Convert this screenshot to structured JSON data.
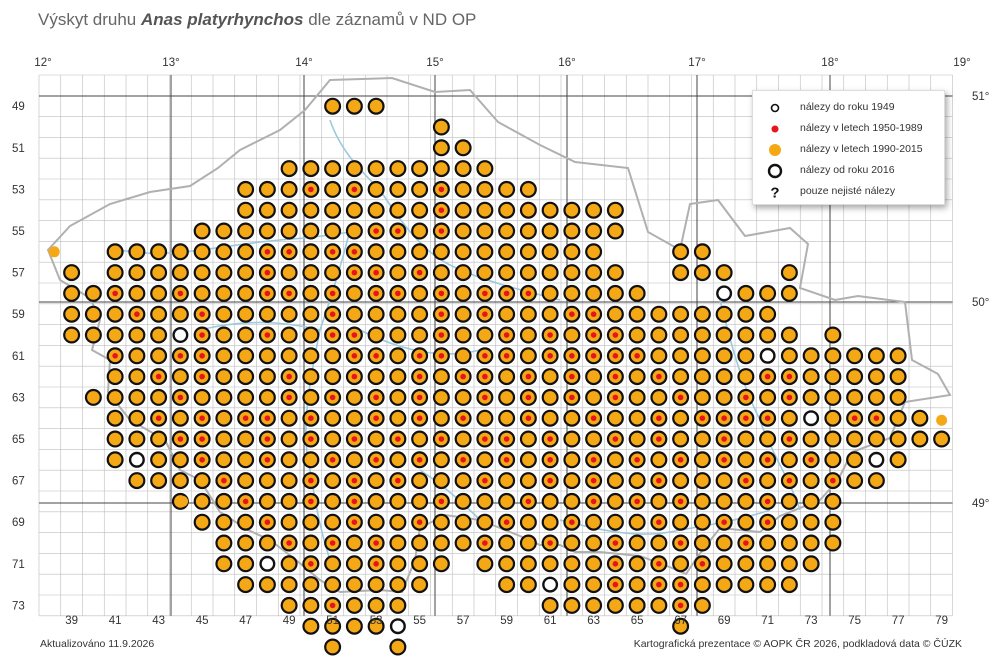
{
  "title": {
    "prefix": "Výskyt druhu ",
    "species": "Anas platyrhynchos",
    "suffix": " dle záznamů v ND OP"
  },
  "axes": {
    "longitude_labels": [
      "12°",
      "13°",
      "14°",
      "15°",
      "16°",
      "17°",
      "18°",
      "19°"
    ],
    "latitude_labels": [
      "51°",
      "50°",
      "49°"
    ],
    "column_labels": [
      "39",
      "41",
      "43",
      "45",
      "47",
      "49",
      "51",
      "53",
      "55",
      "57",
      "59",
      "61",
      "63",
      "65",
      "67",
      "69",
      "71",
      "73",
      "75",
      "77",
      "79"
    ],
    "row_labels": [
      "49",
      "51",
      "53",
      "55",
      "57",
      "59",
      "61",
      "63",
      "65",
      "67",
      "69",
      "71",
      "73"
    ]
  },
  "legend": {
    "items": [
      {
        "label": "nálezy do roku 1949",
        "symbol": "small-open-circle-icon"
      },
      {
        "label": "nálezy v letech 1950-1989",
        "symbol": "red-dot-icon"
      },
      {
        "label": "nálezy v letech 1990-2015",
        "symbol": "orange-dot-icon"
      },
      {
        "label": "nálezy od roku 2016",
        "symbol": "bold-open-circle-icon"
      },
      {
        "label": "pouze nejisté nálezy",
        "symbol": "question-mark-icon"
      }
    ]
  },
  "colors": {
    "recent_fill": "#f5a815",
    "historic_red": "#e8141c",
    "ring": "#111111",
    "grid": "#bdbdbd",
    "border": "#aaaaaa",
    "rivers": "#9cc9e0"
  },
  "map_data": {
    "grid_origin": {
      "column": 38,
      "row": 48
    },
    "occupied_squares": [
      [
        51,
        52,
        53
      ],
      [
        56
      ],
      [
        56,
        57
      ],
      [
        49,
        50,
        51,
        52,
        53,
        54,
        55,
        56,
        57,
        58
      ],
      [
        47,
        48,
        49,
        50,
        51,
        52,
        53,
        54,
        55,
        56,
        57,
        58,
        59,
        60
      ],
      [
        47,
        48,
        49,
        50,
        51,
        52,
        53,
        54,
        55,
        56,
        57,
        58,
        59,
        60,
        61,
        62,
        63,
        64
      ],
      [
        45,
        46,
        47,
        48,
        49,
        50,
        51,
        52,
        53,
        54,
        55,
        56,
        57,
        58,
        59,
        60,
        61,
        62,
        63,
        64
      ],
      [
        41,
        42,
        43,
        44,
        45,
        46,
        47,
        48,
        49,
        50,
        51,
        52,
        53,
        54,
        55,
        56,
        57,
        58,
        59,
        60,
        61,
        62,
        63,
        67,
        68
      ],
      [
        39,
        41,
        42,
        43,
        44,
        45,
        46,
        47,
        48,
        49,
        50,
        51,
        52,
        53,
        54,
        55,
        56,
        57,
        58,
        59,
        60,
        61,
        62,
        63,
        64,
        67,
        68,
        69,
        72
      ],
      [
        39,
        40,
        41,
        42,
        43,
        44,
        45,
        46,
        47,
        48,
        49,
        50,
        51,
        52,
        53,
        54,
        55,
        56,
        57,
        58,
        59,
        60,
        61,
        62,
        63,
        64,
        65,
        69,
        70,
        71,
        72
      ],
      [
        39,
        40,
        41,
        42,
        43,
        44,
        45,
        46,
        47,
        48,
        49,
        50,
        51,
        52,
        53,
        54,
        55,
        56,
        57,
        58,
        59,
        60,
        61,
        62,
        63,
        64,
        65,
        66,
        67,
        68,
        69,
        70,
        71
      ],
      [
        39,
        40,
        41,
        42,
        43,
        44,
        45,
        46,
        47,
        48,
        49,
        50,
        51,
        52,
        53,
        54,
        55,
        56,
        57,
        58,
        59,
        60,
        61,
        62,
        63,
        64,
        65,
        66,
        67,
        68,
        69,
        70,
        71,
        72,
        74
      ],
      [
        41,
        42,
        43,
        44,
        45,
        46,
        47,
        48,
        49,
        50,
        51,
        52,
        53,
        54,
        55,
        56,
        57,
        58,
        59,
        60,
        61,
        62,
        63,
        64,
        65,
        66,
        67,
        68,
        69,
        70,
        71,
        72,
        73,
        74,
        75,
        76,
        77
      ],
      [
        41,
        42,
        43,
        44,
        45,
        46,
        47,
        48,
        49,
        50,
        51,
        52,
        53,
        54,
        55,
        56,
        57,
        58,
        59,
        60,
        61,
        62,
        63,
        64,
        65,
        66,
        67,
        68,
        69,
        70,
        71,
        72,
        73,
        74,
        75,
        76,
        77
      ],
      [
        40,
        41,
        42,
        43,
        44,
        45,
        46,
        47,
        48,
        49,
        50,
        51,
        52,
        53,
        54,
        55,
        56,
        57,
        58,
        59,
        60,
        61,
        62,
        63,
        64,
        65,
        66,
        67,
        68,
        69,
        70,
        71,
        72,
        73,
        74,
        75,
        76,
        77
      ],
      [
        41,
        42,
        43,
        44,
        45,
        46,
        47,
        48,
        49,
        50,
        51,
        52,
        53,
        54,
        55,
        56,
        57,
        58,
        59,
        60,
        61,
        62,
        63,
        64,
        65,
        66,
        67,
        68,
        69,
        70,
        71,
        72,
        73,
        74,
        75,
        76,
        77,
        78
      ],
      [
        41,
        42,
        43,
        44,
        45,
        46,
        47,
        48,
        49,
        50,
        51,
        52,
        53,
        54,
        55,
        56,
        57,
        58,
        59,
        60,
        61,
        62,
        63,
        64,
        65,
        66,
        67,
        68,
        69,
        70,
        71,
        72,
        73,
        74,
        75,
        76,
        77,
        78,
        79
      ],
      [
        41,
        42,
        43,
        44,
        45,
        46,
        47,
        48,
        49,
        50,
        51,
        52,
        53,
        54,
        55,
        56,
        57,
        58,
        59,
        60,
        61,
        62,
        63,
        64,
        65,
        66,
        67,
        68,
        69,
        70,
        71,
        72,
        73,
        74,
        75,
        76,
        77
      ],
      [
        42,
        43,
        44,
        45,
        46,
        47,
        48,
        49,
        50,
        51,
        52,
        53,
        54,
        55,
        56,
        57,
        58,
        59,
        60,
        61,
        62,
        63,
        64,
        65,
        66,
        67,
        68,
        69,
        70,
        71,
        72,
        73,
        74,
        75,
        76
      ],
      [
        44,
        45,
        46,
        47,
        48,
        49,
        50,
        51,
        52,
        53,
        54,
        55,
        56,
        57,
        58,
        59,
        60,
        61,
        62,
        63,
        64,
        65,
        66,
        67,
        68,
        69,
        70,
        71,
        72,
        73,
        74
      ],
      [
        45,
        46,
        47,
        48,
        49,
        50,
        51,
        52,
        53,
        54,
        55,
        56,
        57,
        58,
        59,
        60,
        61,
        62,
        63,
        64,
        65,
        66,
        67,
        68,
        69,
        70,
        71,
        72,
        73,
        74
      ],
      [
        46,
        47,
        48,
        49,
        50,
        51,
        52,
        53,
        54,
        55,
        56,
        57,
        58,
        59,
        60,
        61,
        62,
        63,
        64,
        65,
        66,
        67,
        68,
        69,
        70,
        71,
        72,
        73,
        74
      ],
      [
        46,
        47,
        48,
        49,
        50,
        51,
        52,
        53,
        54,
        55,
        56,
        58,
        59,
        60,
        61,
        62,
        63,
        64,
        65,
        66,
        67,
        68,
        69,
        70,
        71,
        72,
        73
      ],
      [
        47,
        48,
        49,
        50,
        51,
        52,
        53,
        54,
        55,
        59,
        60,
        61,
        62,
        63,
        64,
        65,
        66,
        67,
        68,
        69,
        70,
        71,
        72
      ],
      [
        49,
        50,
        51,
        52,
        53,
        54,
        61,
        62,
        63,
        64,
        65,
        66,
        67,
        68
      ],
      [
        50,
        51,
        52,
        53,
        54,
        67
      ],
      [
        51,
        54
      ]
    ],
    "red_squares": [
      [
        53,
        50
      ],
      [
        53,
        52
      ],
      [
        53,
        56
      ],
      [
        54,
        56
      ],
      [
        55,
        53
      ],
      [
        55,
        54
      ],
      [
        55,
        56
      ],
      [
        56,
        48
      ],
      [
        56,
        49
      ],
      [
        56,
        51
      ],
      [
        56,
        52
      ],
      [
        57,
        48
      ],
      [
        57,
        52
      ],
      [
        57,
        53
      ],
      [
        57,
        55
      ],
      [
        58,
        41
      ],
      [
        58,
        44
      ],
      [
        58,
        48
      ],
      [
        58,
        49
      ],
      [
        58,
        51
      ],
      [
        58,
        53
      ],
      [
        58,
        54
      ],
      [
        58,
        56
      ],
      [
        58,
        58
      ],
      [
        58,
        59
      ],
      [
        58,
        60
      ],
      [
        59,
        42
      ],
      [
        59,
        45
      ],
      [
        59,
        51
      ],
      [
        59,
        56
      ],
      [
        59,
        58
      ],
      [
        59,
        62
      ],
      [
        59,
        63
      ],
      [
        60,
        45
      ],
      [
        60,
        48
      ],
      [
        60,
        51
      ],
      [
        60,
        52
      ],
      [
        60,
        56
      ],
      [
        60,
        59
      ],
      [
        60,
        61
      ],
      [
        60,
        63
      ],
      [
        60,
        64
      ],
      [
        61,
        41
      ],
      [
        61,
        44
      ],
      [
        61,
        45
      ],
      [
        61,
        52
      ],
      [
        61,
        53
      ],
      [
        61,
        55
      ],
      [
        61,
        56
      ],
      [
        61,
        58
      ],
      [
        61,
        59
      ],
      [
        61,
        61
      ],
      [
        61,
        62
      ],
      [
        61,
        63
      ],
      [
        61,
        64
      ],
      [
        61,
        65
      ],
      [
        62,
        43
      ],
      [
        62,
        45
      ],
      [
        62,
        49
      ],
      [
        62,
        52
      ],
      [
        62,
        55
      ],
      [
        62,
        57
      ],
      [
        62,
        58
      ],
      [
        62,
        60
      ],
      [
        62,
        62
      ],
      [
        62,
        64
      ],
      [
        62,
        66
      ],
      [
        62,
        71
      ],
      [
        62,
        72
      ],
      [
        63,
        44
      ],
      [
        63,
        49
      ],
      [
        63,
        51
      ],
      [
        63,
        53
      ],
      [
        63,
        55
      ],
      [
        63,
        58
      ],
      [
        63,
        60
      ],
      [
        63,
        62
      ],
      [
        63,
        64
      ],
      [
        63,
        67
      ],
      [
        63,
        70
      ],
      [
        63,
        72
      ],
      [
        64,
        43
      ],
      [
        64,
        45
      ],
      [
        64,
        47
      ],
      [
        64,
        48
      ],
      [
        64,
        50
      ],
      [
        64,
        53
      ],
      [
        64,
        55
      ],
      [
        64,
        57
      ],
      [
        64,
        60
      ],
      [
        64,
        63
      ],
      [
        64,
        66
      ],
      [
        64,
        68
      ],
      [
        64,
        69
      ],
      [
        64,
        70
      ],
      [
        64,
        71
      ],
      [
        64,
        75
      ],
      [
        64,
        76
      ],
      [
        65,
        44
      ],
      [
        65,
        45
      ],
      [
        65,
        48
      ],
      [
        65,
        50
      ],
      [
        65,
        52
      ],
      [
        65,
        54
      ],
      [
        65,
        56
      ],
      [
        65,
        58
      ],
      [
        65,
        59
      ],
      [
        65,
        61
      ],
      [
        65,
        64
      ],
      [
        65,
        66
      ],
      [
        65,
        69
      ],
      [
        65,
        72
      ],
      [
        66,
        45
      ],
      [
        66,
        48
      ],
      [
        66,
        51
      ],
      [
        66,
        53
      ],
      [
        66,
        55
      ],
      [
        66,
        57
      ],
      [
        66,
        59
      ],
      [
        66,
        61
      ],
      [
        66,
        63
      ],
      [
        66,
        65
      ],
      [
        66,
        67
      ],
      [
        66,
        69
      ],
      [
        66,
        71
      ],
      [
        66,
        73
      ],
      [
        67,
        46
      ],
      [
        67,
        50
      ],
      [
        67,
        52
      ],
      [
        67,
        54
      ],
      [
        67,
        58
      ],
      [
        67,
        61
      ],
      [
        67,
        63
      ],
      [
        67,
        66
      ],
      [
        67,
        70
      ],
      [
        67,
        72
      ],
      [
        67,
        74
      ],
      [
        68,
        47
      ],
      [
        68,
        50
      ],
      [
        68,
        52
      ],
      [
        68,
        56
      ],
      [
        68,
        60
      ],
      [
        68,
        63
      ],
      [
        68,
        65
      ],
      [
        68,
        67
      ],
      [
        68,
        71
      ],
      [
        69,
        48
      ],
      [
        69,
        52
      ],
      [
        69,
        55
      ],
      [
        69,
        59
      ],
      [
        69,
        62
      ],
      [
        69,
        66
      ],
      [
        69,
        69
      ],
      [
        69,
        71
      ],
      [
        70,
        49
      ],
      [
        70,
        51
      ],
      [
        70,
        53
      ],
      [
        70,
        58
      ],
      [
        70,
        61
      ],
      [
        70,
        64
      ],
      [
        70,
        67
      ],
      [
        70,
        70
      ],
      [
        71,
        50
      ],
      [
        71,
        53
      ],
      [
        71,
        64
      ],
      [
        71,
        66
      ],
      [
        71,
        68
      ],
      [
        72,
        64
      ],
      [
        72,
        66
      ],
      [
        72,
        67
      ],
      [
        73,
        51
      ],
      [
        73,
        67
      ]
    ],
    "thin_ring_squares": [
      [
        55,
        41
      ],
      [
        55,
        42
      ],
      [
        56,
        39
      ],
      [
        57,
        38
      ],
      [
        57,
        40
      ],
      [
        58,
        66
      ],
      [
        58,
        68
      ],
      [
        58,
        69
      ],
      [
        60,
        44
      ],
      [
        61,
        71
      ],
      [
        62,
        40
      ],
      [
        64,
        73
      ],
      [
        66,
        42
      ],
      [
        66,
        76
      ],
      [
        71,
        48
      ],
      [
        72,
        61
      ],
      [
        73,
        73
      ],
      [
        74,
        54
      ]
    ],
    "outlier_dots": [
      {
        "column": 38.2,
        "row": 56
      },
      {
        "column": 44.1,
        "row": 68
      },
      {
        "column": 52,
        "row": 74
      },
      {
        "column": 79,
        "row": 64.1
      }
    ]
  },
  "footer": {
    "updated": "Aktualizováno 11.9.2026",
    "credits": "Kartografická prezentace © AOPK ČR 2026, podkladová data © ČÚZK"
  }
}
